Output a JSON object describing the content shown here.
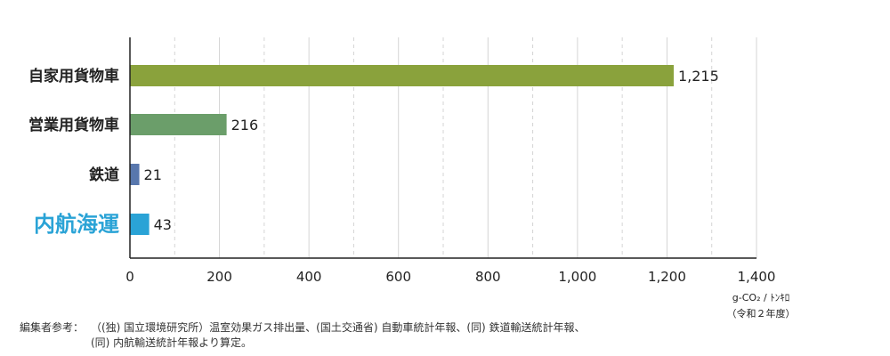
{
  "chart_data": {
    "type": "bar",
    "orientation": "horizontal",
    "categories": [
      "自家用貨物車",
      "営業用貨物車",
      "鉄道",
      "内航海運"
    ],
    "values": [
      1215,
      216,
      21,
      43
    ],
    "value_labels": [
      "1,215",
      "216",
      "21",
      "43"
    ],
    "highlight_category": "内航海運",
    "colors": [
      "#8aa23c",
      "#6b9e6a",
      "#5877ad",
      "#2aa3d6"
    ],
    "highlight_text_color": "#2aa3d6",
    "xlim": [
      0,
      1400
    ],
    "xticks": [
      0,
      200,
      400,
      600,
      800,
      1000,
      1200,
      1400
    ],
    "xtick_labels": [
      "0",
      "200",
      "400",
      "600",
      "800",
      "1,000",
      "1,200",
      "1,400"
    ],
    "minor_grid": [
      100,
      300,
      500,
      700,
      900,
      1100,
      1300
    ],
    "grid": true,
    "unit_line1": "g-CO₂ / ﾄﾝｷﾛ",
    "unit_line2": "（令和２年度）"
  },
  "source": {
    "prefix": "編集者参考：",
    "line1": "（(独) 国立環境研究所）温室効果ガス排出量、(国土交通省) 自動車統計年報、(同) 鉄道輸送統計年報、",
    "line2": "(同) 内航輸送統計年報より算定。"
  }
}
